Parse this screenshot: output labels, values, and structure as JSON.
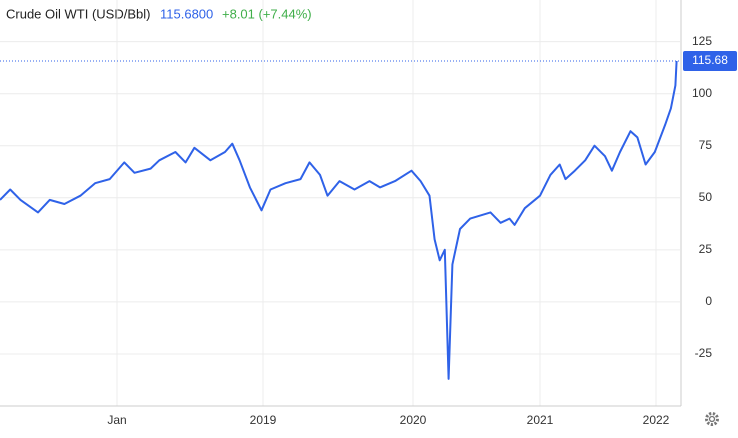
{
  "chart_data": {
    "type": "line",
    "title": "Crude Oil WTI (USD/Bbl)",
    "price": "115.6800",
    "change": "+8.01 (+7.44%)",
    "last_label": "115.68",
    "x": [
      2017.2,
      2017.27,
      2017.34,
      2017.46,
      2017.54,
      2017.64,
      2017.75,
      2017.85,
      2017.95,
      2018.05,
      2018.12,
      2018.23,
      2018.29,
      2018.4,
      2018.47,
      2018.53,
      2018.64,
      2018.74,
      2018.79,
      2018.84,
      2018.91,
      2018.99,
      2019.05,
      2019.15,
      2019.25,
      2019.31,
      2019.38,
      2019.43,
      2019.51,
      2019.61,
      2019.71,
      2019.78,
      2019.88,
      2019.99,
      2020.06,
      2020.13,
      2020.17,
      2020.21,
      2020.25,
      2020.28,
      2020.31,
      2020.37,
      2020.45,
      2020.61,
      2020.69,
      2020.76,
      2020.8,
      2020.88,
      2021.0,
      2021.09,
      2021.17,
      2021.22,
      2021.3,
      2021.39,
      2021.47,
      2021.56,
      2021.62,
      2021.69,
      2021.78,
      2021.84,
      2021.91,
      2021.99,
      2022.08,
      2022.13,
      2022.17,
      2022.18
    ],
    "series": [
      {
        "name": "Crude Oil WTI",
        "color": "#2f62e8",
        "values": [
          49,
          54,
          49,
          43,
          49,
          47,
          51,
          57,
          59,
          67,
          62,
          64,
          68,
          72,
          67,
          74,
          68,
          72,
          76,
          68,
          55,
          44,
          54,
          57,
          59,
          67,
          61,
          51,
          58,
          54,
          58,
          55,
          58,
          63,
          58,
          51,
          30,
          20,
          25,
          -37,
          18,
          35,
          40,
          43,
          38,
          40,
          37,
          45,
          51,
          61,
          66,
          59,
          63,
          68,
          75,
          70,
          63,
          72,
          82,
          79,
          66,
          72,
          85,
          93,
          104,
          115.68
        ]
      }
    ],
    "xlim": [
      2017.2,
      2022.21
    ],
    "xticks": [
      {
        "value": 2018,
        "label": "Jan"
      },
      2019,
      2020,
      2021,
      2022
    ],
    "ylim": [
      -50,
      145
    ],
    "yticks": [
      -25,
      0,
      25,
      50,
      75,
      100,
      125
    ],
    "grid": true
  }
}
